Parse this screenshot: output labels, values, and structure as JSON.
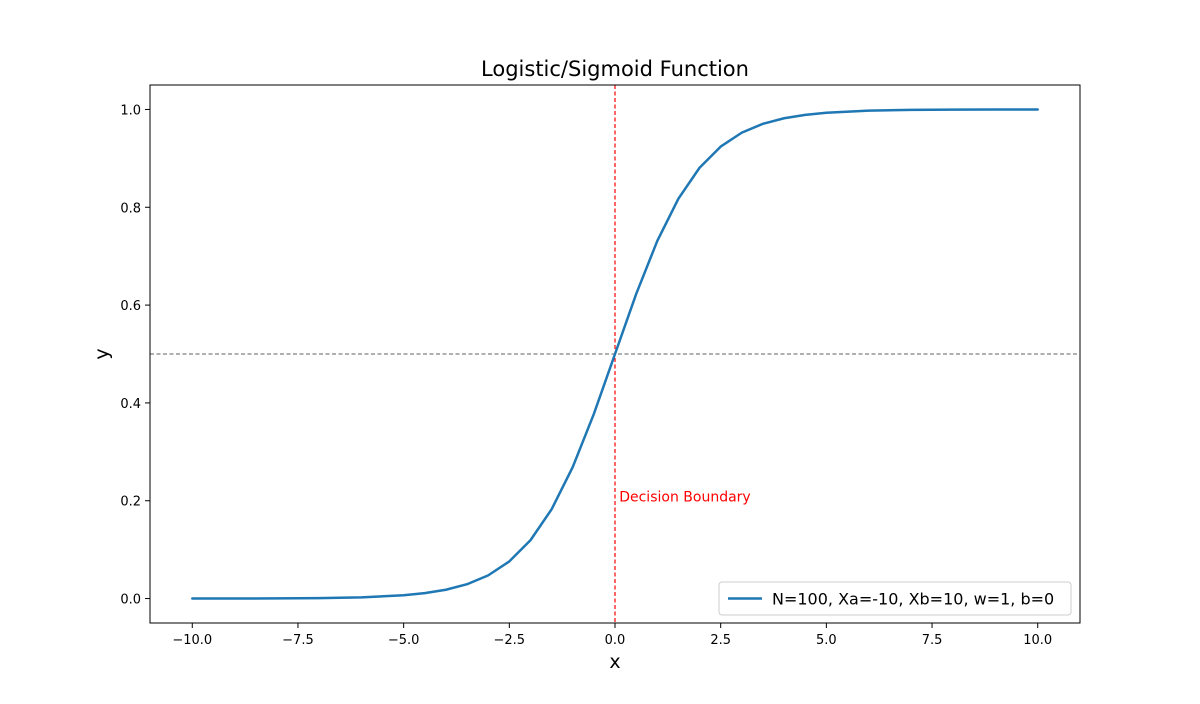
{
  "chart_data": {
    "type": "line",
    "title": "Logistic/Sigmoid Function",
    "xlabel": "x",
    "ylabel": "y",
    "xlim": [
      -11,
      11
    ],
    "ylim": [
      -0.05,
      1.05
    ],
    "xticks": [
      -10.0,
      -7.5,
      -5.0,
      -2.5,
      0.0,
      2.5,
      5.0,
      7.5,
      10.0
    ],
    "xtick_labels": [
      "−10.0",
      "−7.5",
      "−5.0",
      "−2.5",
      "0.0",
      "2.5",
      "5.0",
      "7.5",
      "10.0"
    ],
    "yticks": [
      0.0,
      0.2,
      0.4,
      0.6,
      0.8,
      1.0
    ],
    "ytick_labels": [
      "0.0",
      "0.2",
      "0.4",
      "0.6",
      "0.8",
      "1.0"
    ],
    "grid": false,
    "legend": {
      "position": "lower-right"
    },
    "series": [
      {
        "name": "N=100, Xa=-10, Xb=10, w=1, b=0",
        "color": "#1f77b4",
        "x": [
          -10.0,
          -9.0,
          -8.0,
          -7.0,
          -6.0,
          -5.0,
          -4.5,
          -4.0,
          -3.5,
          -3.0,
          -2.5,
          -2.0,
          -1.5,
          -1.0,
          -0.5,
          0.0,
          0.5,
          1.0,
          1.5,
          2.0,
          2.5,
          3.0,
          3.5,
          4.0,
          4.5,
          5.0,
          6.0,
          7.0,
          8.0,
          9.0,
          10.0
        ],
        "y": [
          0.0,
          0.0001,
          0.0003,
          0.0009,
          0.0025,
          0.0067,
          0.011,
          0.018,
          0.0293,
          0.0474,
          0.0759,
          0.1192,
          0.1824,
          0.2689,
          0.3775,
          0.5,
          0.6225,
          0.7311,
          0.8176,
          0.8808,
          0.9241,
          0.9526,
          0.9707,
          0.982,
          0.989,
          0.9933,
          0.9975,
          0.9991,
          0.9997,
          0.9999,
          1.0
        ]
      }
    ],
    "reference_lines": [
      {
        "orientation": "horizontal",
        "value": 0.5,
        "color": "#808080",
        "style": "dashed"
      },
      {
        "orientation": "vertical",
        "value": 0.0,
        "color": "#ff0000",
        "style": "dashed"
      }
    ],
    "annotations": [
      {
        "text": "Decision Boundary",
        "x": 0.1,
        "y": 0.2,
        "color": "#ff0000"
      }
    ]
  }
}
